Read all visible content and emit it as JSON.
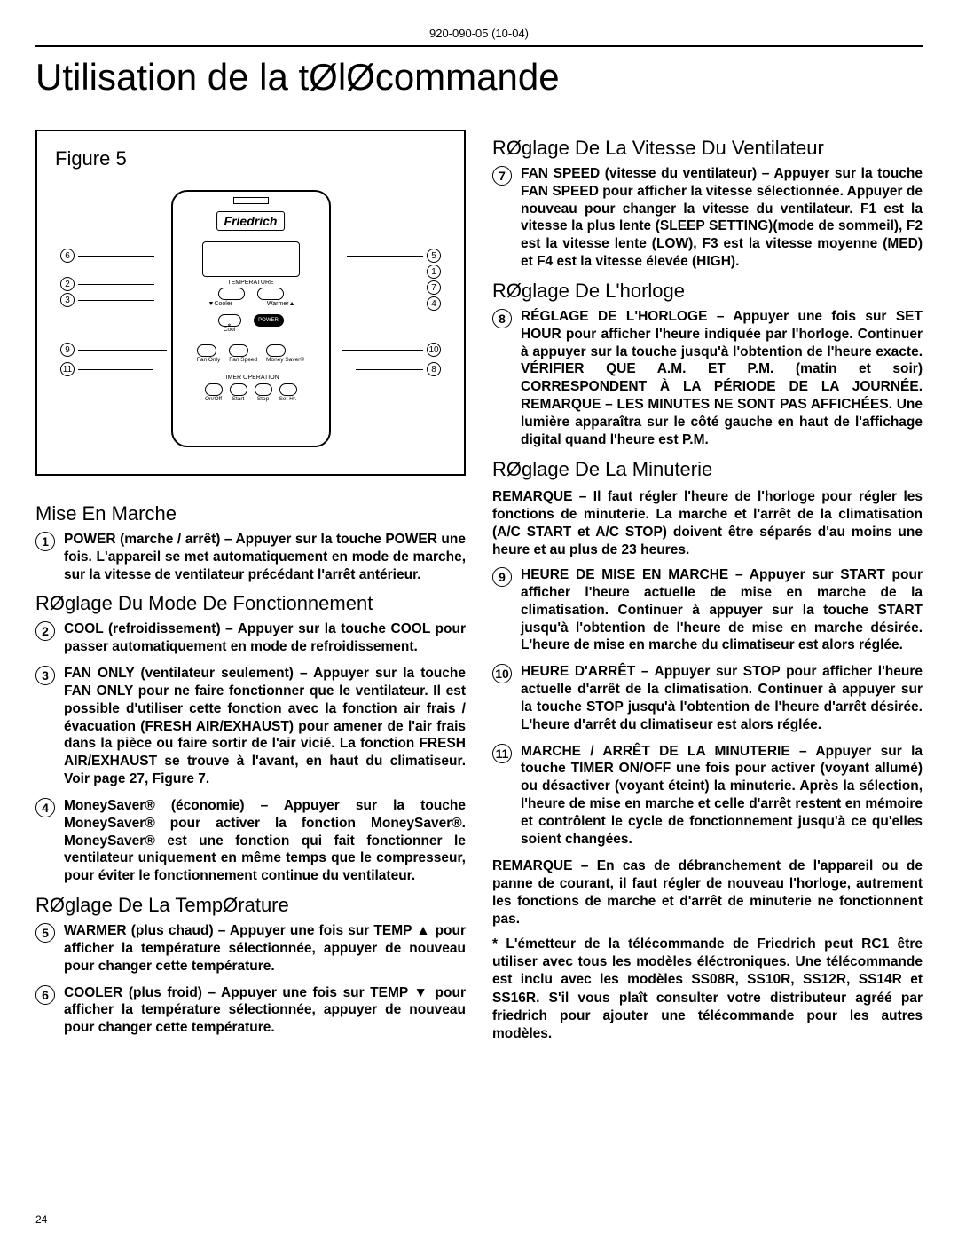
{
  "doc_id": "920-090-05 (10-04)",
  "page_title": "Utilisation de la tØlØcommande",
  "figure_label": "Figure 5",
  "remote_brand": "Friedrich",
  "remote_labels": {
    "temperature": "TEMPERATURE",
    "cooler": "Cooler",
    "warmer": "Warmer",
    "power": "POWER",
    "cool": "Cool",
    "fan_only": "Fan Only",
    "fan_speed": "Fan Speed",
    "money_saver": "Money Saver®",
    "timer_operation": "TIMER OPERATION",
    "on_off": "On/Off",
    "start": "Start",
    "stop": "Stop",
    "set_hr": "Set Hr."
  },
  "callouts": [
    "1",
    "2",
    "3",
    "4",
    "5",
    "6",
    "7",
    "8",
    "9",
    "10",
    "11"
  ],
  "left_sections": [
    {
      "heading": "Mise En Marche",
      "items": [
        {
          "num": "1",
          "text": "POWER (marche / arrêt) – Appuyer sur la touche POWER une fois. L'appareil se met automatiquement en mode de marche, sur la vitesse de ventilateur précédant l'arrêt antérieur."
        }
      ]
    },
    {
      "heading": "RØglage Du Mode De Fonctionnement",
      "items": [
        {
          "num": "2",
          "text": "COOL (refroidissement) – Appuyer sur la touche COOL pour passer automatiquement en mode de refroidissement."
        },
        {
          "num": "3",
          "text": "FAN ONLY (ventilateur seulement) – Appuyer sur la touche FAN ONLY pour ne faire fonctionner que le ventilateur. Il est possible d'utiliser cette fonction avec la fonction air frais / évacuation (FRESH AIR/EXHAUST) pour amener de l'air frais dans la pièce ou faire sortir de l'air vicié. La fonction FRESH AIR/EXHAUST se trouve à l'avant, en haut du climatiseur. Voir page 27, Figure 7."
        },
        {
          "num": "4",
          "text": "MoneySaver® (économie) – Appuyer sur la touche MoneySaver® pour activer la fonction MoneySaver®. MoneySaver® est une fonction qui fait fonctionner le ventilateur uniquement en même temps que le compresseur, pour éviter le fonctionnement continue du ventilateur."
        }
      ]
    },
    {
      "heading": "RØglage De La TempØrature",
      "items": [
        {
          "num": "5",
          "text": "WARMER (plus chaud) – Appuyer une fois sur TEMP ▲ pour afficher la température sélectionnée, appuyer de nouveau pour changer cette température."
        },
        {
          "num": "6",
          "text": "COOLER (plus froid) – Appuyer une fois sur TEMP ▼ pour afficher la température sélectionnée, appuyer de nouveau pour changer cette température."
        }
      ]
    }
  ],
  "right_sections": [
    {
      "heading": "RØglage De La Vitesse Du Ventilateur",
      "items": [
        {
          "num": "7",
          "text": "FAN SPEED (vitesse du ventilateur) – Appuyer sur la touche FAN SPEED pour afficher la vitesse sélectionnée. Appuyer de nouveau pour changer la vitesse du ventilateur. F1 est la vitesse la plus lente (SLEEP SETTING)(mode de sommeil), F2 est la vitesse lente (LOW), F3 est la vitesse moyenne (MED) et F4 est la vitesse élevée (HIGH)."
        }
      ]
    },
    {
      "heading": "RØglage De L'horloge",
      "items": [
        {
          "num": "8",
          "text": "RÉGLAGE DE L'HORLOGE – Appuyer une fois sur SET HOUR pour afficher l'heure indiquée par l'horloge. Continuer à appuyer sur la touche jusqu'à l'obtention de l'heure exacte. VÉRIFIER QUE A.M. ET P.M. (matin et soir) CORRESPONDENT À LA PÉRIODE DE LA JOURNÉE. REMARQUE – LES MINUTES NE SONT PAS AFFICHÉES. Une lumière apparaîtra sur le côté gauche en haut de l'affichage digital quand l'heure est P.M."
        }
      ]
    },
    {
      "heading": "RØglage De La Minuterie",
      "note_before": "REMARQUE – Il faut régler l'heure de l'horloge pour régler les fonctions de minuterie. La marche et l'arrêt de la climatisation (A/C START et A/C STOP) doivent être séparés d'au moins une heure et au plus de 23 heures.",
      "items": [
        {
          "num": "9",
          "text": "HEURE DE MISE EN MARCHE – Appuyer sur START pour afficher l'heure actuelle de mise en marche de la climatisation. Continuer à appuyer sur la touche START jusqu'à l'obtention de l'heure de mise en marche désirée. L'heure de mise en marche du climatiseur est alors réglée."
        },
        {
          "num": "10",
          "text": "HEURE D'ARRÊT – Appuyer sur STOP pour afficher l'heure actuelle d'arrêt de la climatisation. Continuer à appuyer sur la touche STOP jusqu'à l'obtention de l'heure d'arrêt désirée. L'heure d'arrêt du climatiseur est alors réglée."
        },
        {
          "num": "11",
          "text": "MARCHE / ARRÊT DE LA MINUTERIE – Appuyer sur la touche TIMER ON/OFF une fois pour activer (voyant allumé) ou désactiver (voyant éteint) la minuterie. Après la sélection, l'heure de mise en marche et celle d'arrêt restent en mémoire et contrôlent le cycle de fonctionnement jusqu'à ce qu'elles soient changées."
        }
      ],
      "notes_after": [
        "REMARQUE – En cas de débranchement de l'appareil ou de panne de courant, il faut régler de nouveau l'horloge, autrement les fonctions de marche et d'arrêt de minuterie ne fonctionnent pas.",
        "* L'émetteur de la télécommande de Friedrich peut RC1 être utiliser avec tous les modèles éléctroniques.  Une télécommande est inclu avec les modèles SS08R, SS10R, SS12R, SS14R et SS16R.  S'il vous plaît consulter votre distributeur agréé par friedrich pour ajouter une télécommande pour les autres modèles."
      ]
    }
  ],
  "page_number": "24"
}
